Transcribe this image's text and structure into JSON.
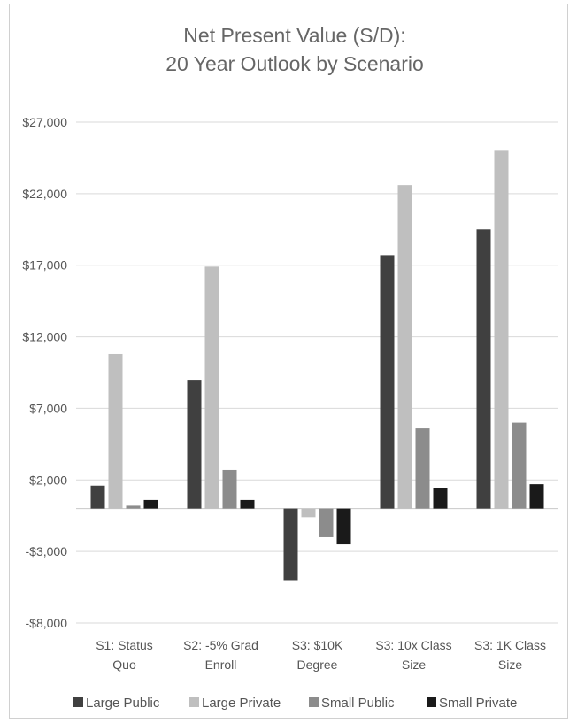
{
  "chart_data": {
    "type": "bar",
    "title": [
      "Net Present Value (S/D):",
      "20 Year Outlook by Scenario"
    ],
    "xlabel": "",
    "ylabel": "",
    "ylim": [
      -8000,
      27000
    ],
    "yticks": [
      27000,
      22000,
      17000,
      12000,
      7000,
      2000,
      -3000,
      -8000
    ],
    "ytick_labels": [
      "$27,000",
      "$22,000",
      "$17,000",
      "$12,000",
      "$7,000",
      "$2,000",
      "-$3,000",
      "-$8,000"
    ],
    "grid": true,
    "legend_position": "bottom",
    "categories": [
      [
        "S1: Status",
        "Quo"
      ],
      [
        "S2: -5% Grad",
        "Enroll"
      ],
      [
        "S3: $10K",
        "Degree"
      ],
      [
        "S3: 10x Class",
        "Size"
      ],
      [
        "S3: 1K Class",
        "Size"
      ]
    ],
    "series": [
      {
        "name": "Large Public",
        "color": "#404040",
        "values": [
          1600,
          9000,
          -5000,
          17700,
          19500
        ]
      },
      {
        "name": "Large Private",
        "color": "#bfbfbf",
        "values": [
          10800,
          16900,
          -600,
          22600,
          25000
        ]
      },
      {
        "name": "Small Public",
        "color": "#8c8c8c",
        "values": [
          200,
          2700,
          -2000,
          5600,
          6000
        ]
      },
      {
        "name": "Small Private",
        "color": "#1a1a1a",
        "values": [
          600,
          600,
          -2500,
          1400,
          1700
        ]
      }
    ]
  }
}
